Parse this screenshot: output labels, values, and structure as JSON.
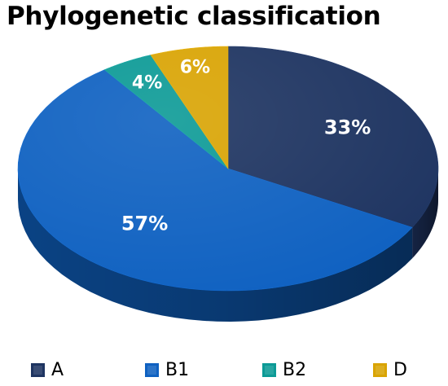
{
  "chart_data": {
    "type": "pie",
    "title": "Phylogenetic classification",
    "categories": [
      "A",
      "B1",
      "B2",
      "D"
    ],
    "values": [
      33,
      57,
      4,
      6
    ],
    "data_labels": [
      "33%",
      "57%",
      "4%",
      "6%"
    ],
    "colors": [
      "#1e3461",
      "#0f61c1",
      "#0c9a96",
      "#d9a404"
    ],
    "label_colors": [
      "#ffffff",
      "#ffffff",
      "#ffffff",
      "#ffffff"
    ],
    "style": "3d",
    "start": "12 o'clock, clockwise",
    "legend_position": "bottom"
  }
}
